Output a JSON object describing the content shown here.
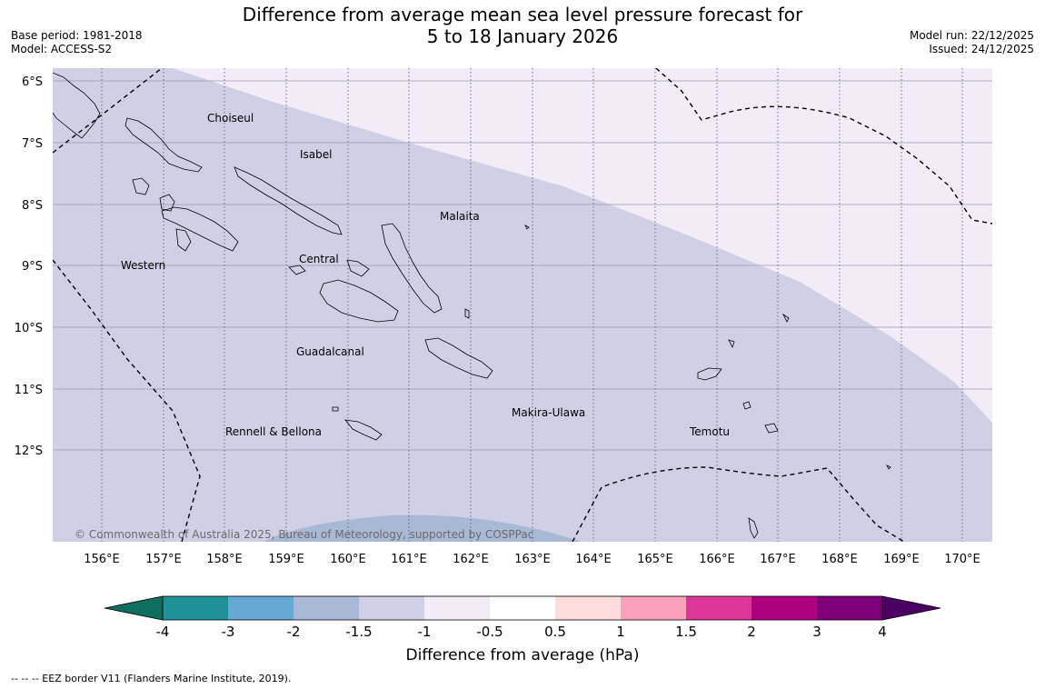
{
  "title": {
    "line1": "Difference from average mean sea level pressure forecast for",
    "line2": "5 to 18 January 2026"
  },
  "meta_left": {
    "base_period": "Base period: 1981-2018",
    "model": "Model: ACCESS-S2"
  },
  "meta_right": {
    "model_run": "Model run: 22/12/2025",
    "issued": "Issued: 24/12/2025"
  },
  "map": {
    "lat_labels": [
      "6°S",
      "7°S",
      "8°S",
      "9°S",
      "10°S",
      "11°S",
      "12°S"
    ],
    "lon_labels": [
      "156°E",
      "157°E",
      "158°E",
      "159°E",
      "160°E",
      "161°E",
      "162°E",
      "163°E",
      "164°E",
      "165°E",
      "166°E",
      "167°E",
      "168°E",
      "169°E",
      "170°E"
    ],
    "places": [
      {
        "name": "Choiseul"
      },
      {
        "name": "Isabel"
      },
      {
        "name": "Malaita"
      },
      {
        "name": "Western"
      },
      {
        "name": "Central"
      },
      {
        "name": "Guadalcanal"
      },
      {
        "name": "Makira-Ulawa"
      },
      {
        "name": "Rennell & Bellona"
      },
      {
        "name": "Temotu"
      }
    ],
    "copyright": "© Commonwealth of Australia 2025, Bureau of Meteorology, supported by COSPPac",
    "fill_colors": {
      "minus_1_5_to_minus_1": "#cfd0e6",
      "minus_1_to_minus_0_5": "#f3ecf6",
      "minus_2_to_minus_1_5": "#a9b9d5"
    }
  },
  "colorbar": {
    "ticks": [
      "-4",
      "-3",
      "-2",
      "-1.5",
      "-1",
      "-0.5",
      "0.5",
      "1",
      "1.5",
      "2",
      "3",
      "4"
    ],
    "colors": [
      "#0f6f5f",
      "#1e9297",
      "#67a9d2",
      "#a9b9d5",
      "#cfd0e6",
      "#f3ecf6",
      "#ffffff",
      "#fddcdc",
      "#f9a0ba",
      "#dd3698",
      "#ad027f",
      "#7d0078",
      "#4b0064"
    ],
    "label": "Difference from average (hPa)"
  },
  "footer": {
    "legend_text": "--  --  -- EEZ border V11 (Flanders Marine Institute, 2019)."
  }
}
